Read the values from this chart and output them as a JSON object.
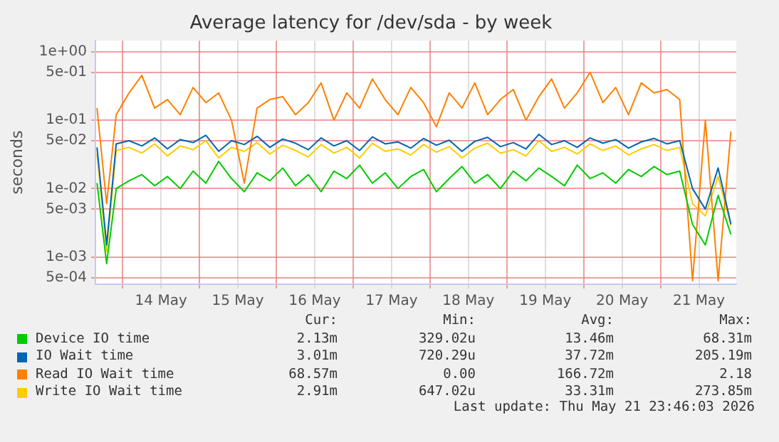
{
  "chart_data": {
    "type": "line",
    "title": "Average latency for /dev/sda - by week",
    "ylabel": "seconds",
    "log": "y",
    "grid": true,
    "legend": "bottom",
    "marker": "none",
    "line_style": "solid",
    "xlim": [
      "2026-05-13T15:30",
      "2026-05-21T23:40"
    ],
    "xticks": [
      {
        "value": "2026-05-14T00:00",
        "label": null
      },
      {
        "value": "2026-05-14T12:00",
        "label": "14 May"
      },
      {
        "value": "2026-05-15T00:00",
        "label": null
      },
      {
        "value": "2026-05-15T12:00",
        "label": "15 May"
      },
      {
        "value": "2026-05-16T00:00",
        "label": null
      },
      {
        "value": "2026-05-16T12:00",
        "label": "16 May"
      },
      {
        "value": "2026-05-17T00:00",
        "label": null
      },
      {
        "value": "2026-05-17T12:00",
        "label": "17 May"
      },
      {
        "value": "2026-05-18T00:00",
        "label": null
      },
      {
        "value": "2026-05-18T12:00",
        "label": "18 May"
      },
      {
        "value": "2026-05-19T00:00",
        "label": null
      },
      {
        "value": "2026-05-19T12:00",
        "label": "19 May"
      },
      {
        "value": "2026-05-20T00:00",
        "label": null
      },
      {
        "value": "2026-05-20T12:00",
        "label": "20 May"
      },
      {
        "value": "2026-05-21T00:00",
        "label": null
      },
      {
        "value": "2026-05-21T12:00",
        "label": "21 May"
      }
    ],
    "ylim": [
      0.0004,
      1.45
    ],
    "yticks": [
      {
        "value": 0.0005,
        "label": "5e-04"
      },
      {
        "value": 0.001,
        "label": "1e-03"
      },
      {
        "value": 0.005,
        "label": "5e-03"
      },
      {
        "value": 0.01,
        "label": "1e-02"
      },
      {
        "value": 0.05,
        "label": "5e-02"
      },
      {
        "value": 0.1,
        "label": "1e-01"
      },
      {
        "value": 0.5,
        "label": "5e-01"
      },
      {
        "value": 1,
        "label": "1e+00"
      }
    ],
    "x": [
      "2026-05-13T16:00",
      "2026-05-13T19:00",
      "2026-05-13T22:00",
      "2026-05-14T02:00",
      "2026-05-14T06:00",
      "2026-05-14T10:00",
      "2026-05-14T14:00",
      "2026-05-14T18:00",
      "2026-05-14T22:00",
      "2026-05-15T02:00",
      "2026-05-15T06:00",
      "2026-05-15T10:00",
      "2026-05-15T14:00",
      "2026-05-15T18:00",
      "2026-05-15T22:00",
      "2026-05-16T02:00",
      "2026-05-16T06:00",
      "2026-05-16T10:00",
      "2026-05-16T14:00",
      "2026-05-16T18:00",
      "2026-05-16T22:00",
      "2026-05-17T02:00",
      "2026-05-17T06:00",
      "2026-05-17T10:00",
      "2026-05-17T14:00",
      "2026-05-17T18:00",
      "2026-05-17T22:00",
      "2026-05-18T02:00",
      "2026-05-18T06:00",
      "2026-05-18T10:00",
      "2026-05-18T14:00",
      "2026-05-18T18:00",
      "2026-05-18T22:00",
      "2026-05-19T02:00",
      "2026-05-19T06:00",
      "2026-05-19T10:00",
      "2026-05-19T14:00",
      "2026-05-19T18:00",
      "2026-05-19T22:00",
      "2026-05-20T02:00",
      "2026-05-20T06:00",
      "2026-05-20T10:00",
      "2026-05-20T14:00",
      "2026-05-20T18:00",
      "2026-05-20T22:00",
      "2026-05-21T02:00",
      "2026-05-21T06:00",
      "2026-05-21T10:00",
      "2026-05-21T14:00",
      "2026-05-21T18:00",
      "2026-05-21T22:00"
    ],
    "series": [
      {
        "name": "Device IO time",
        "color": "#00cc00",
        "values": [
          0.012,
          0.0008,
          0.01,
          0.013,
          0.016,
          0.011,
          0.015,
          0.01,
          0.018,
          0.012,
          0.025,
          0.014,
          0.009,
          0.017,
          0.013,
          0.02,
          0.011,
          0.016,
          0.009,
          0.018,
          0.014,
          0.022,
          0.012,
          0.017,
          0.01,
          0.015,
          0.019,
          0.009,
          0.014,
          0.021,
          0.012,
          0.016,
          0.01,
          0.018,
          0.013,
          0.02,
          0.015,
          0.011,
          0.022,
          0.014,
          0.017,
          0.012,
          0.019,
          0.015,
          0.021,
          0.016,
          0.018,
          0.003,
          0.0015,
          0.008,
          0.00213
        ]
      },
      {
        "name": "IO Wait time",
        "color": "#0066b3",
        "values": [
          0.04,
          0.0015,
          0.045,
          0.05,
          0.042,
          0.055,
          0.038,
          0.052,
          0.047,
          0.06,
          0.035,
          0.05,
          0.044,
          0.058,
          0.04,
          0.053,
          0.046,
          0.037,
          0.055,
          0.042,
          0.05,
          0.036,
          0.057,
          0.045,
          0.048,
          0.039,
          0.054,
          0.043,
          0.051,
          0.035,
          0.049,
          0.056,
          0.041,
          0.047,
          0.038,
          0.062,
          0.044,
          0.05,
          0.04,
          0.055,
          0.046,
          0.052,
          0.039,
          0.048,
          0.054,
          0.045,
          0.05,
          0.01,
          0.005,
          0.02,
          0.00301
        ]
      },
      {
        "name": "Read IO Wait time",
        "color": "#ff8000",
        "values": [
          0.15,
          0.006,
          0.12,
          0.25,
          0.45,
          0.15,
          0.2,
          0.12,
          0.3,
          0.18,
          0.25,
          0.1,
          0.012,
          0.15,
          0.2,
          0.22,
          0.12,
          0.18,
          0.35,
          0.1,
          0.25,
          0.15,
          0.4,
          0.2,
          0.12,
          0.3,
          0.18,
          0.08,
          0.25,
          0.15,
          0.35,
          0.12,
          0.2,
          0.28,
          0.1,
          0.22,
          0.4,
          0.15,
          0.25,
          0.5,
          0.18,
          0.3,
          0.12,
          0.35,
          0.25,
          0.28,
          0.2,
          0.00045,
          0.1,
          0.00045,
          0.0686
        ]
      },
      {
        "name": "Write IO Wait time",
        "color": "#ffcc00",
        "values": [
          0.032,
          0.0012,
          0.036,
          0.04,
          0.033,
          0.045,
          0.03,
          0.042,
          0.037,
          0.05,
          0.028,
          0.04,
          0.035,
          0.047,
          0.032,
          0.043,
          0.036,
          0.029,
          0.044,
          0.033,
          0.04,
          0.028,
          0.046,
          0.035,
          0.038,
          0.031,
          0.044,
          0.034,
          0.041,
          0.028,
          0.039,
          0.046,
          0.033,
          0.037,
          0.03,
          0.05,
          0.035,
          0.04,
          0.032,
          0.045,
          0.036,
          0.042,
          0.031,
          0.038,
          0.044,
          0.036,
          0.04,
          0.006,
          0.004,
          0.015,
          0.00291
        ]
      }
    ],
    "annotations": [
      "Cur:",
      "Min:",
      "Avg:",
      "Max:",
      "2.13m",
      "329.02u",
      "13.46m",
      "68.31m",
      "3.01m",
      "720.29u",
      "37.72m",
      "205.19m",
      "68.57m",
      "0.00",
      "166.72m",
      "2.18",
      "2.91m",
      "647.02u",
      "33.31m",
      "273.85m",
      "Last update: Thu May 21 23:46:03 2026"
    ]
  }
}
